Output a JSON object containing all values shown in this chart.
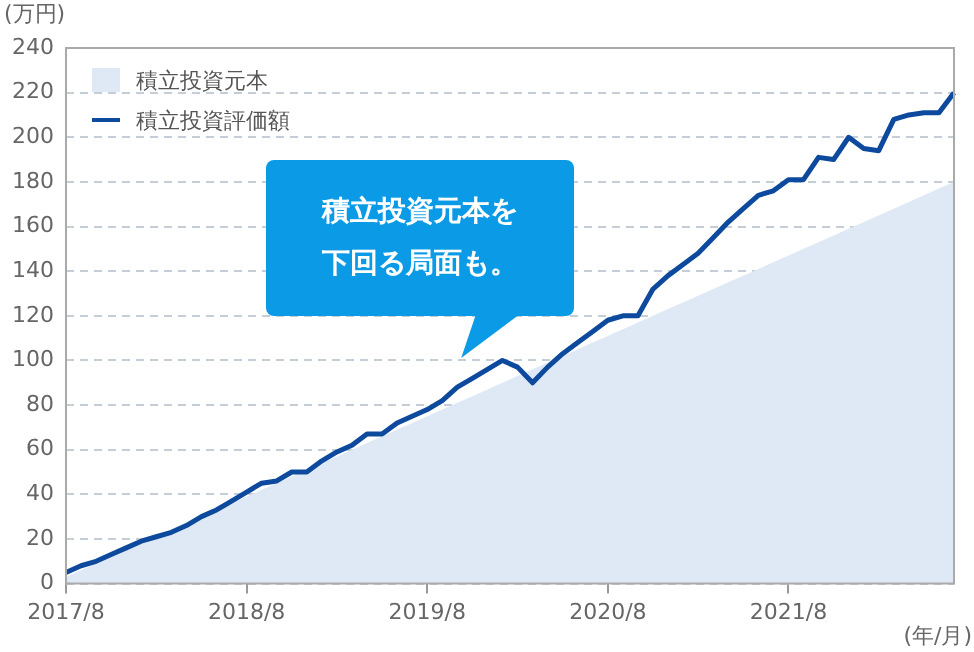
{
  "chart_data": {
    "type": "line",
    "ylabel": "(万円)",
    "xlabel": "(年/月)",
    "categories": [
      "2017/8",
      null,
      null,
      null,
      null,
      null,
      null,
      null,
      null,
      null,
      null,
      null,
      "2018/8",
      null,
      null,
      null,
      null,
      null,
      null,
      null,
      null,
      null,
      null,
      null,
      "2019/8",
      null,
      null,
      null,
      null,
      null,
      null,
      null,
      null,
      null,
      null,
      null,
      "2020/8",
      null,
      null,
      null,
      null,
      null,
      null,
      null,
      null,
      null,
      null,
      null,
      "2021/8",
      null,
      null,
      null,
      null,
      null,
      null,
      null,
      null,
      null,
      null,
      null
    ],
    "series": [
      {
        "name": "積立投資元本",
        "type": "area",
        "color": "#dfe9f5",
        "values": [
          3,
          6,
          9,
          12,
          15,
          18,
          21,
          24,
          27,
          30,
          33,
          36,
          39,
          42,
          45,
          48,
          51,
          54,
          57,
          60,
          63,
          66,
          69,
          72,
          75,
          78,
          81,
          84,
          87,
          90,
          93,
          96,
          99,
          102,
          105,
          108,
          111,
          114,
          117,
          120,
          123,
          126,
          129,
          132,
          135,
          138,
          141,
          144,
          147,
          150,
          153,
          156,
          159,
          162,
          165,
          168,
          171,
          174,
          177,
          180
        ]
      },
      {
        "name": "積立投資評価額",
        "type": "line",
        "color": "#0d4a9e",
        "values": [
          5,
          8,
          10,
          13,
          16,
          19,
          21,
          23,
          26,
          30,
          33,
          37,
          41,
          45,
          46,
          50,
          50,
          55,
          59,
          62,
          67,
          67,
          72,
          75,
          78,
          82,
          88,
          92,
          96,
          100,
          97,
          90,
          97,
          103,
          108,
          113,
          118,
          120,
          120,
          132,
          138,
          143,
          148,
          155,
          162,
          168,
          174,
          176,
          181,
          181,
          191,
          190,
          200,
          195,
          194,
          208,
          210,
          211,
          211,
          220
        ]
      }
    ],
    "ylim": [
      0,
      240
    ],
    "yticks": [
      0,
      20,
      40,
      60,
      80,
      100,
      120,
      140,
      160,
      180,
      200,
      220,
      240
    ],
    "grid": "y",
    "legend": "top left",
    "annotations": [
      "積立投資元本を下回る局面も。"
    ]
  }
}
